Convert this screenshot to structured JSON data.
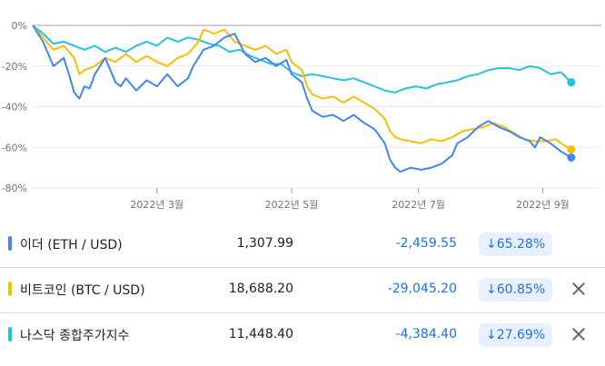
{
  "chart_data": {
    "type": "line",
    "yticks": [
      "0%",
      "-20%",
      "-40%",
      "-60%",
      "-80%"
    ],
    "ytick_values": [
      0,
      -20,
      -40,
      -60,
      -80
    ],
    "xticks": [
      {
        "label": "2022년 3월",
        "x": 0.24
      },
      {
        "label": "2022년 5월",
        "x": 0.5
      },
      {
        "label": "2022년 7월",
        "x": 0.745
      },
      {
        "label": "2022년 9월",
        "x": 0.985
      }
    ],
    "ylim": [
      -82,
      2
    ],
    "series": [
      {
        "name": "이더 (ETH / USD)",
        "color": "#4285f4",
        "points": [
          [
            0,
            0
          ],
          [
            0.02,
            -8
          ],
          [
            0.04,
            -20
          ],
          [
            0.06,
            -16
          ],
          [
            0.07,
            -24
          ],
          [
            0.08,
            -33
          ],
          [
            0.09,
            -36
          ],
          [
            0.1,
            -30
          ],
          [
            0.11,
            -31
          ],
          [
            0.12,
            -24
          ],
          [
            0.14,
            -16
          ],
          [
            0.16,
            -28
          ],
          [
            0.17,
            -30
          ],
          [
            0.18,
            -26
          ],
          [
            0.2,
            -32
          ],
          [
            0.22,
            -27
          ],
          [
            0.24,
            -30
          ],
          [
            0.26,
            -24
          ],
          [
            0.28,
            -30
          ],
          [
            0.3,
            -26
          ],
          [
            0.31,
            -20
          ],
          [
            0.33,
            -12
          ],
          [
            0.35,
            -10
          ],
          [
            0.37,
            -6
          ],
          [
            0.39,
            -4
          ],
          [
            0.41,
            -14
          ],
          [
            0.43,
            -18
          ],
          [
            0.45,
            -16
          ],
          [
            0.47,
            -20
          ],
          [
            0.49,
            -17
          ],
          [
            0.5,
            -24
          ],
          [
            0.52,
            -28
          ],
          [
            0.53,
            -36
          ],
          [
            0.54,
            -42
          ],
          [
            0.56,
            -45
          ],
          [
            0.58,
            -44
          ],
          [
            0.6,
            -47
          ],
          [
            0.62,
            -44
          ],
          [
            0.64,
            -48
          ],
          [
            0.66,
            -51
          ],
          [
            0.68,
            -58
          ],
          [
            0.69,
            -66
          ],
          [
            0.7,
            -70
          ],
          [
            0.71,
            -72
          ],
          [
            0.73,
            -70
          ],
          [
            0.75,
            -71
          ],
          [
            0.77,
            -70
          ],
          [
            0.79,
            -68
          ],
          [
            0.81,
            -64
          ],
          [
            0.82,
            -58
          ],
          [
            0.84,
            -55
          ],
          [
            0.86,
            -50
          ],
          [
            0.88,
            -47
          ],
          [
            0.9,
            -50
          ],
          [
            0.92,
            -52
          ],
          [
            0.94,
            -55
          ],
          [
            0.96,
            -57
          ],
          [
            0.97,
            -60
          ],
          [
            0.98,
            -55
          ],
          [
            1.0,
            -58
          ],
          [
            1.02,
            -62
          ],
          [
            1.04,
            -65
          ]
        ]
      },
      {
        "name": "비트코인 (BTC / USD)",
        "color": "#fbbc04",
        "points": [
          [
            0,
            0
          ],
          [
            0.02,
            -6
          ],
          [
            0.04,
            -12
          ],
          [
            0.06,
            -10
          ],
          [
            0.08,
            -16
          ],
          [
            0.09,
            -24
          ],
          [
            0.1,
            -22
          ],
          [
            0.12,
            -20
          ],
          [
            0.14,
            -16
          ],
          [
            0.16,
            -18
          ],
          [
            0.18,
            -14
          ],
          [
            0.2,
            -18
          ],
          [
            0.22,
            -15
          ],
          [
            0.24,
            -18
          ],
          [
            0.26,
            -20
          ],
          [
            0.28,
            -16
          ],
          [
            0.3,
            -14
          ],
          [
            0.32,
            -8
          ],
          [
            0.33,
            -2
          ],
          [
            0.35,
            -4
          ],
          [
            0.37,
            -2
          ],
          [
            0.39,
            -8
          ],
          [
            0.41,
            -10
          ],
          [
            0.43,
            -12
          ],
          [
            0.45,
            -10
          ],
          [
            0.47,
            -14
          ],
          [
            0.49,
            -12
          ],
          [
            0.5,
            -18
          ],
          [
            0.52,
            -22
          ],
          [
            0.53,
            -30
          ],
          [
            0.54,
            -34
          ],
          [
            0.56,
            -36
          ],
          [
            0.58,
            -35
          ],
          [
            0.6,
            -38
          ],
          [
            0.62,
            -35
          ],
          [
            0.64,
            -38
          ],
          [
            0.66,
            -41
          ],
          [
            0.68,
            -46
          ],
          [
            0.69,
            -52
          ],
          [
            0.7,
            -55
          ],
          [
            0.71,
            -56
          ],
          [
            0.73,
            -57
          ],
          [
            0.75,
            -58
          ],
          [
            0.77,
            -56
          ],
          [
            0.79,
            -57
          ],
          [
            0.81,
            -55
          ],
          [
            0.83,
            -52
          ],
          [
            0.85,
            -51
          ],
          [
            0.87,
            -50
          ],
          [
            0.89,
            -48
          ],
          [
            0.91,
            -50
          ],
          [
            0.93,
            -53
          ],
          [
            0.95,
            -56
          ],
          [
            0.97,
            -57
          ],
          [
            0.99,
            -57
          ],
          [
            1.01,
            -56
          ],
          [
            1.02,
            -58
          ],
          [
            1.04,
            -61
          ]
        ]
      },
      {
        "name": "나스닥 종합주가지수",
        "color": "#24c1e0",
        "points": [
          [
            0,
            0
          ],
          [
            0.02,
            -4
          ],
          [
            0.04,
            -9
          ],
          [
            0.06,
            -8
          ],
          [
            0.08,
            -10
          ],
          [
            0.1,
            -12
          ],
          [
            0.12,
            -10
          ],
          [
            0.14,
            -13
          ],
          [
            0.16,
            -11
          ],
          [
            0.18,
            -13
          ],
          [
            0.2,
            -10
          ],
          [
            0.22,
            -8
          ],
          [
            0.24,
            -10
          ],
          [
            0.26,
            -6
          ],
          [
            0.28,
            -8
          ],
          [
            0.3,
            -6
          ],
          [
            0.32,
            -7
          ],
          [
            0.34,
            -9
          ],
          [
            0.36,
            -10
          ],
          [
            0.38,
            -13
          ],
          [
            0.4,
            -12
          ],
          [
            0.42,
            -15
          ],
          [
            0.44,
            -17
          ],
          [
            0.46,
            -19
          ],
          [
            0.48,
            -19
          ],
          [
            0.5,
            -23
          ],
          [
            0.52,
            -25
          ],
          [
            0.54,
            -24
          ],
          [
            0.56,
            -25
          ],
          [
            0.58,
            -26
          ],
          [
            0.6,
            -27
          ],
          [
            0.62,
            -26
          ],
          [
            0.64,
            -28
          ],
          [
            0.66,
            -30
          ],
          [
            0.68,
            -32
          ],
          [
            0.7,
            -33
          ],
          [
            0.72,
            -31
          ],
          [
            0.74,
            -30
          ],
          [
            0.76,
            -31
          ],
          [
            0.78,
            -29
          ],
          [
            0.8,
            -28
          ],
          [
            0.82,
            -27
          ],
          [
            0.84,
            -25
          ],
          [
            0.86,
            -24
          ],
          [
            0.88,
            -22
          ],
          [
            0.9,
            -21
          ],
          [
            0.92,
            -21
          ],
          [
            0.94,
            -22
          ],
          [
            0.96,
            -20
          ],
          [
            0.98,
            -21
          ],
          [
            1.0,
            -24
          ],
          [
            1.02,
            -23
          ],
          [
            1.04,
            -28
          ]
        ]
      }
    ]
  },
  "rows": [
    {
      "name": "이더 (ETH / USD)",
      "price": "1,307.99",
      "change": "-2,459.55",
      "pct": "65.28%",
      "color": "#4285f4",
      "closable": false
    },
    {
      "name": "비트코인 (BTC / USD)",
      "price": "18,688.20",
      "change": "-29,045.20",
      "pct": "60.85%",
      "color": "#fbbc04",
      "closable": true
    },
    {
      "name": "나스닥 종합주가지수",
      "price": "11,448.40",
      "change": "-4,384.40",
      "pct": "27.69%",
      "color": "#24c1e0",
      "closable": true
    }
  ]
}
